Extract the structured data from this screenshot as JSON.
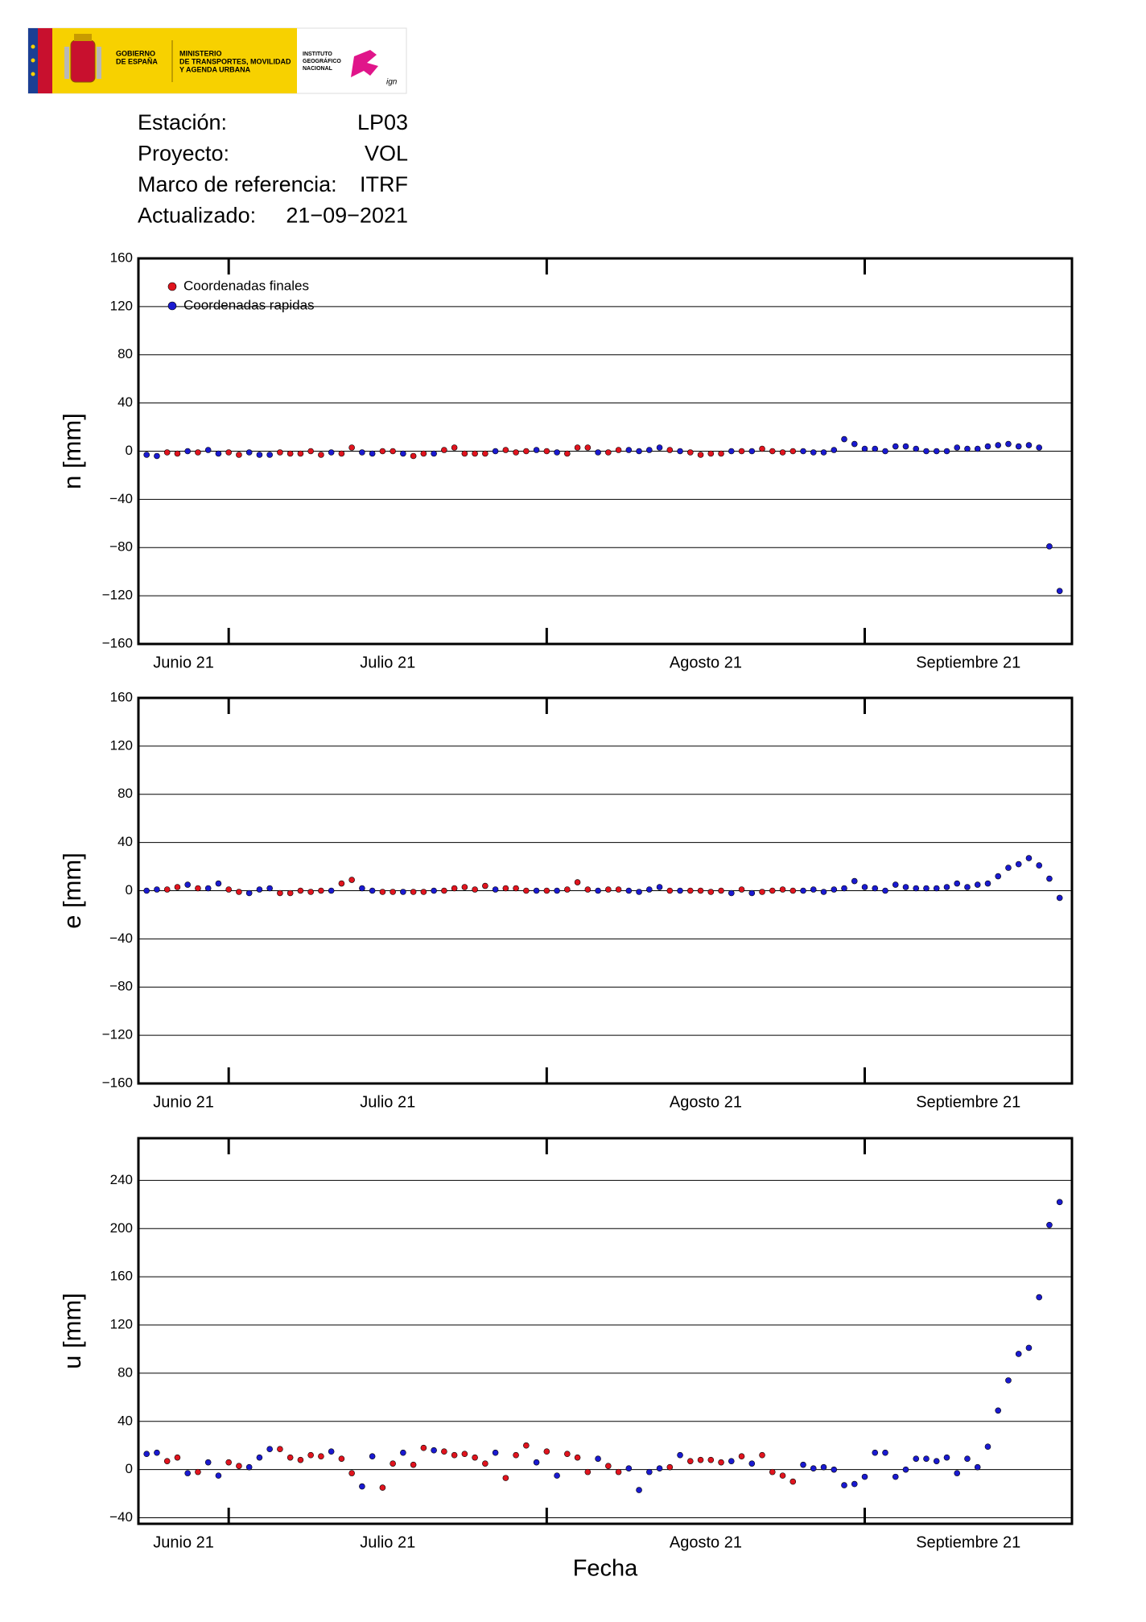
{
  "logo": {
    "government": [
      "GOBIERNO",
      "DE ESPAÑA"
    ],
    "ministry": [
      "MINISTERIO",
      "DE TRANSPORTES, MOVILIDAD",
      "Y AGENDA URBANA"
    ],
    "institute": [
      "INSTITUTO",
      "GEOGRÁFICO",
      "NACIONAL"
    ],
    "mark": "ign"
  },
  "header": {
    "rows": [
      {
        "label": "Estación:",
        "value": "LP03"
      },
      {
        "label": "Proyecto:",
        "value": "VOL"
      },
      {
        "label": "Marco de referencia:",
        "value": "ITRF"
      },
      {
        "label": "Actualizado:",
        "value": "21−09−2021"
      }
    ]
  },
  "chart_data": [
    {
      "type": "scatter",
      "ylabel": "n [mm]",
      "legend": "upper left",
      "grid": true,
      "xlim": [
        173.2,
        264.2
      ],
      "xticks": [
        182,
        213,
        244
      ],
      "xtick_labels": [
        "Junio 21",
        "Julio 21",
        "Agosto 21",
        "Septiembre 21"
      ],
      "ylim": [
        -160,
        160
      ],
      "yticks": [
        {
          "value": -160,
          "label": "−160"
        },
        {
          "value": -120,
          "label": "−120"
        },
        {
          "value": -80,
          "label": "−80"
        },
        {
          "value": -40,
          "label": "−40"
        },
        0,
        40,
        80,
        120,
        160
      ],
      "x": [
        174,
        175,
        176,
        177,
        178,
        179,
        180,
        181,
        182,
        183,
        184,
        185,
        186,
        187,
        188,
        189,
        190,
        191,
        192,
        193,
        194,
        195,
        196,
        197,
        198,
        199,
        200,
        201,
        202,
        203,
        204,
        205,
        206,
        207,
        208,
        209,
        210,
        211,
        212,
        213,
        214,
        215,
        216,
        217,
        218,
        219,
        220,
        221,
        222,
        223,
        224,
        225,
        226,
        227,
        228,
        229,
        230,
        231,
        232,
        233,
        234,
        235,
        236,
        237,
        238,
        239,
        240,
        241,
        242,
        243,
        244,
        245,
        246,
        247,
        248,
        249,
        250,
        251,
        252,
        253,
        254,
        255,
        256,
        257,
        258,
        259,
        260,
        261,
        262,
        263
      ],
      "series": [
        {
          "name": "Coordenadas finales",
          "color": "#e0141e",
          "values": [
            null,
            null,
            -1,
            -2,
            null,
            -1,
            null,
            null,
            -1,
            -3,
            null,
            null,
            null,
            -1,
            -2,
            -2,
            0,
            -3,
            null,
            -2,
            3,
            null,
            null,
            0,
            0,
            null,
            -4,
            -2,
            null,
            1,
            3,
            -2,
            -2,
            -2,
            null,
            1,
            -1,
            0,
            null,
            0,
            null,
            -2,
            3,
            3,
            null,
            -1,
            1,
            null,
            null,
            null,
            null,
            1,
            null,
            -1,
            -3,
            -2,
            -2,
            null,
            0,
            null,
            2,
            0,
            -1,
            0,
            null,
            null,
            null,
            null,
            null,
            null,
            null,
            null,
            null,
            null,
            null,
            null,
            null,
            null,
            null,
            null,
            null,
            null,
            null,
            null,
            null,
            null,
            null,
            null,
            null,
            null
          ]
        },
        {
          "name": "Coordenadas rapidas",
          "color": "#1a1ad0",
          "values": [
            -3,
            -4,
            null,
            null,
            0,
            null,
            1,
            -2,
            null,
            null,
            -1,
            -3,
            -3,
            null,
            null,
            null,
            null,
            null,
            -1,
            null,
            null,
            -1,
            -2,
            null,
            null,
            -2,
            null,
            null,
            -2,
            null,
            null,
            null,
            null,
            null,
            0,
            null,
            null,
            null,
            1,
            null,
            -1,
            null,
            null,
            null,
            -1,
            null,
            null,
            1,
            0,
            1,
            3,
            null,
            0,
            null,
            null,
            null,
            null,
            0,
            null,
            0,
            null,
            null,
            null,
            null,
            0,
            -1,
            -1,
            1,
            10,
            6,
            2,
            2,
            0,
            4,
            4,
            2,
            0,
            0,
            0,
            3,
            2,
            2,
            4,
            5,
            6,
            4,
            5,
            3,
            -79,
            -116
          ]
        }
      ]
    },
    {
      "type": "scatter",
      "ylabel": "e [mm]",
      "grid": true,
      "xlim": [
        173.2,
        264.2
      ],
      "xticks": [
        182,
        213,
        244
      ],
      "xtick_labels": [
        "Junio 21",
        "Julio 21",
        "Agosto 21",
        "Septiembre 21"
      ],
      "ylim": [
        -160,
        160
      ],
      "yticks": [
        {
          "value": -160,
          "label": "−160"
        },
        {
          "value": -120,
          "label": "−120"
        },
        {
          "value": -80,
          "label": "−80"
        },
        {
          "value": -40,
          "label": "−40"
        },
        0,
        40,
        80,
        120,
        160
      ],
      "x": [
        174,
        175,
        176,
        177,
        178,
        179,
        180,
        181,
        182,
        183,
        184,
        185,
        186,
        187,
        188,
        189,
        190,
        191,
        192,
        193,
        194,
        195,
        196,
        197,
        198,
        199,
        200,
        201,
        202,
        203,
        204,
        205,
        206,
        207,
        208,
        209,
        210,
        211,
        212,
        213,
        214,
        215,
        216,
        217,
        218,
        219,
        220,
        221,
        222,
        223,
        224,
        225,
        226,
        227,
        228,
        229,
        230,
        231,
        232,
        233,
        234,
        235,
        236,
        237,
        238,
        239,
        240,
        241,
        242,
        243,
        244,
        245,
        246,
        247,
        248,
        249,
        250,
        251,
        252,
        253,
        254,
        255,
        256,
        257,
        258,
        259,
        260,
        261,
        262,
        263
      ],
      "series": [
        {
          "color": "#e0141e",
          "values": [
            null,
            null,
            1,
            3,
            null,
            2,
            null,
            null,
            1,
            -1,
            null,
            null,
            null,
            -2,
            -2,
            0,
            -1,
            0,
            null,
            6,
            9,
            null,
            null,
            -1,
            -1,
            null,
            -1,
            -1,
            null,
            0,
            2,
            3,
            1,
            4,
            null,
            2,
            2,
            0,
            null,
            0,
            null,
            1,
            7,
            1,
            null,
            1,
            1,
            null,
            null,
            null,
            null,
            0,
            null,
            0,
            0,
            -1,
            0,
            null,
            1,
            null,
            -1,
            0,
            1,
            0,
            null,
            null,
            null,
            null,
            null,
            null,
            null,
            null,
            null,
            null,
            null,
            null,
            null,
            null,
            null,
            null,
            null,
            null,
            null,
            null,
            null,
            null,
            null,
            null,
            null,
            null
          ]
        },
        {
          "color": "#1a1ad0",
          "values": [
            0,
            1,
            null,
            null,
            5,
            null,
            2,
            6,
            null,
            null,
            -2,
            1,
            2,
            null,
            null,
            null,
            null,
            null,
            0,
            null,
            null,
            2,
            0,
            null,
            null,
            -1,
            null,
            null,
            0,
            null,
            null,
            null,
            null,
            null,
            1,
            null,
            null,
            null,
            0,
            null,
            0,
            null,
            null,
            null,
            0,
            null,
            null,
            0,
            -1,
            1,
            3,
            null,
            0,
            null,
            null,
            null,
            null,
            -2,
            null,
            -2,
            null,
            null,
            null,
            null,
            0,
            1,
            -1,
            1,
            2,
            8,
            3,
            2,
            0,
            5,
            3,
            2,
            2,
            2,
            3,
            6,
            3,
            5,
            6,
            12,
            19,
            22,
            27,
            21,
            10,
            -6
          ]
        }
      ]
    },
    {
      "type": "scatter",
      "ylabel": "u [mm]",
      "xlabel": "Fecha",
      "grid": true,
      "xlim": [
        173.2,
        264.2
      ],
      "xticks": [
        182,
        213,
        244
      ],
      "xtick_labels": [
        "Junio 21",
        "Julio 21",
        "Agosto 21",
        "Septiembre 21"
      ],
      "ylim": [
        -45,
        275
      ],
      "yticks": [
        {
          "value": -40,
          "label": "−40"
        },
        0,
        40,
        80,
        120,
        160,
        200,
        240
      ],
      "x": [
        174,
        175,
        176,
        177,
        178,
        179,
        180,
        181,
        182,
        183,
        184,
        185,
        186,
        187,
        188,
        189,
        190,
        191,
        192,
        193,
        194,
        195,
        196,
        197,
        198,
        199,
        200,
        201,
        202,
        203,
        204,
        205,
        206,
        207,
        208,
        209,
        210,
        211,
        212,
        213,
        214,
        215,
        216,
        217,
        218,
        219,
        220,
        221,
        222,
        223,
        224,
        225,
        226,
        227,
        228,
        229,
        230,
        231,
        232,
        233,
        234,
        235,
        236,
        237,
        238,
        239,
        240,
        241,
        242,
        243,
        244,
        245,
        246,
        247,
        248,
        249,
        250,
        251,
        252,
        253,
        254,
        255,
        256,
        257,
        258,
        259,
        260,
        261,
        262,
        263
      ],
      "series": [
        {
          "color": "#e0141e",
          "values": [
            null,
            null,
            7,
            10,
            null,
            -2,
            null,
            null,
            6,
            3,
            null,
            null,
            null,
            17,
            10,
            8,
            12,
            11,
            null,
            9,
            -3,
            null,
            null,
            -15,
            5,
            null,
            4,
            18,
            null,
            15,
            12,
            13,
            10,
            5,
            null,
            -7,
            12,
            20,
            null,
            15,
            null,
            13,
            10,
            -2,
            null,
            3,
            -2,
            null,
            null,
            null,
            null,
            2,
            null,
            7,
            8,
            8,
            6,
            null,
            11,
            null,
            12,
            -2,
            -5,
            -10,
            null,
            null,
            null,
            null,
            null,
            null,
            null,
            null,
            null,
            null,
            null,
            null,
            null,
            null,
            null,
            null,
            null,
            null,
            null,
            null,
            null,
            null,
            null,
            null,
            null,
            null
          ]
        },
        {
          "color": "#1a1ad0",
          "values": [
            13,
            14,
            null,
            null,
            -3,
            null,
            6,
            -5,
            null,
            null,
            2,
            10,
            17,
            null,
            null,
            null,
            null,
            null,
            15,
            null,
            null,
            -14,
            11,
            null,
            null,
            14,
            null,
            null,
            16,
            null,
            null,
            null,
            null,
            null,
            14,
            null,
            null,
            null,
            6,
            null,
            -5,
            null,
            null,
            null,
            9,
            null,
            null,
            1,
            -17,
            -2,
            1,
            null,
            12,
            null,
            null,
            null,
            null,
            7,
            null,
            5,
            null,
            null,
            null,
            null,
            4,
            1,
            2,
            0,
            -13,
            -12,
            -6,
            14,
            14,
            -6,
            0,
            9,
            9,
            7,
            10,
            -3,
            9,
            2,
            19,
            49,
            74,
            96,
            101,
            143,
            203,
            222
          ]
        }
      ]
    }
  ]
}
